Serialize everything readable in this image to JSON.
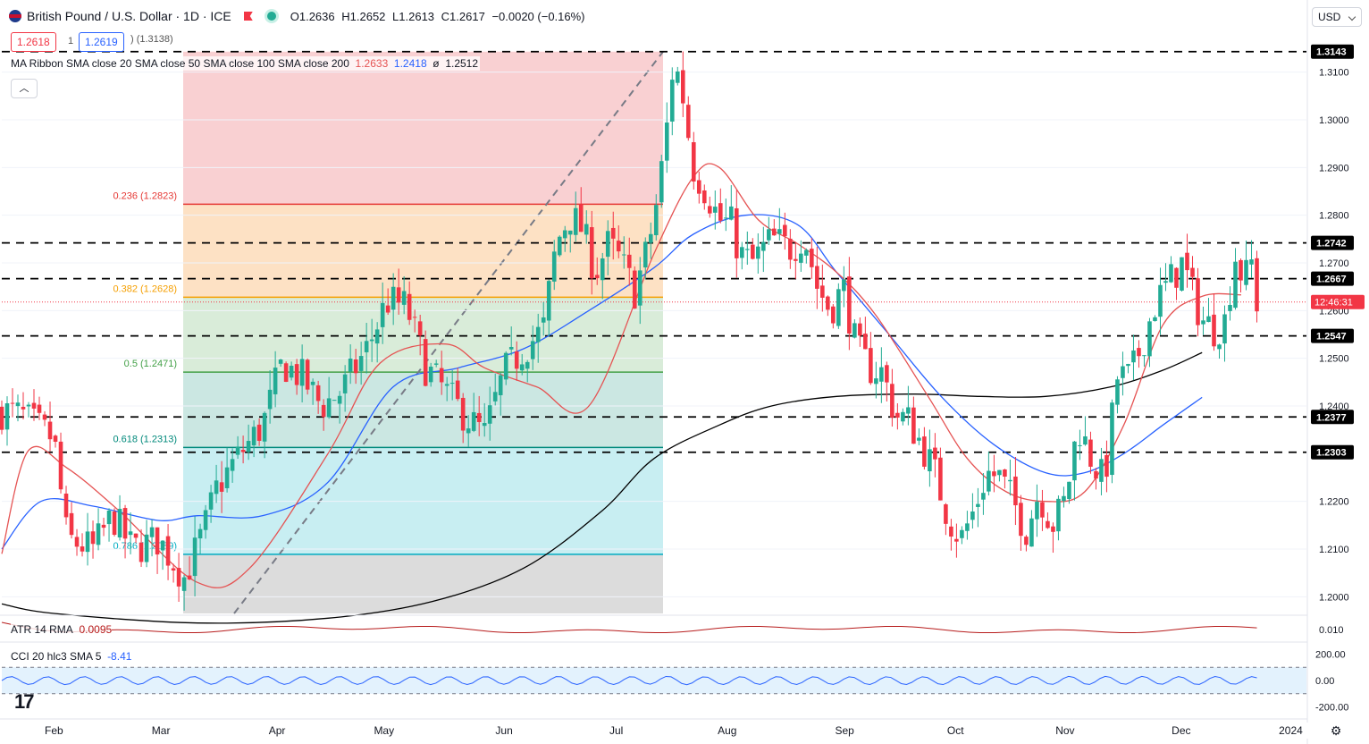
{
  "header": {
    "symbol": "British Pound / U.S. Dollar · 1D · ICE",
    "open": "O1.2636",
    "high": "H1.2652",
    "low": "L1.2613",
    "close": "C1.2617",
    "change": "−0.0020 (−0.16%)",
    "sell_price": "1.2618",
    "spread": "1",
    "buy_price": "1.2619",
    "hidden_value": ") (1.3138)",
    "currency": "USD"
  },
  "ribbon": {
    "label": "MA Ribbon SMA close 20 SMA close 50 SMA close 100 SMA close 200",
    "v20": "1.2633",
    "v50": "1.2418",
    "vsep": "ø",
    "v100": "1.2512"
  },
  "atr": {
    "label": "ATR 14 RMA",
    "value": "0.0095"
  },
  "cci": {
    "label": "CCI 20 hlc3 SMA 5",
    "value": "-8.41"
  },
  "colors": {
    "up": "#22ab94",
    "down": "#f23645",
    "ma20": "#e55353",
    "ma50": "#2962ff",
    "ma200": "#000000",
    "fib_0": "#f9d0d2",
    "fib_236": "#fde1c4",
    "fib_382": "#d9ecd9",
    "fib_5": "#cbe7e2",
    "fib_618": "#c8eef2",
    "fib_786": "#dcdcdc"
  },
  "chart_data": {
    "type": "candlestick",
    "instrument": "GBP/USD",
    "timeframe": "1D",
    "x_ticks": [
      "Feb",
      "Mar",
      "Apr",
      "May",
      "Jun",
      "Jul",
      "Aug",
      "Sep",
      "Oct",
      "Nov",
      "Dec",
      "2024"
    ],
    "y_ticks": [
      "1.3100",
      "1.3000",
      "1.2900",
      "1.2800",
      "1.2700",
      "1.2600",
      "1.2500",
      "1.2400",
      "1.2200",
      "1.2100",
      "1.2000"
    ],
    "ylim": [
      1.1965,
      1.3195
    ],
    "horizontal_levels": [
      1.3143,
      1.2742,
      1.2667,
      1.2547,
      1.2377,
      1.2303
    ],
    "level_labels": [
      "1.3143",
      "1.2742",
      "1.2667",
      "1.2547",
      "1.2377",
      "1.2303"
    ],
    "current_price": 1.2618,
    "countdown": "12:46:31",
    "fibonacci": {
      "levels": [
        {
          "label": "0.236 (1.2823)",
          "price": 1.2823,
          "ratio": 0.236
        },
        {
          "label": "0.382 (1.2628)",
          "price": 1.2628,
          "ratio": 0.382
        },
        {
          "label": "0.5 (1.2471)",
          "price": 1.2471,
          "ratio": 0.5
        },
        {
          "label": "0.618 (1.2313)",
          "price": 1.2313,
          "ratio": 0.618
        },
        {
          "label": "0.786 (1.2089)",
          "price": 1.2089,
          "ratio": 0.786
        }
      ],
      "high": 1.3143
    },
    "ma_keypoints": {
      "ma20": [
        [
          0.0,
          1.209
        ],
        [
          0.02,
          1.2305
        ],
        [
          0.05,
          1.227
        ],
        [
          0.09,
          1.218
        ],
        [
          0.15,
          1.203
        ],
        [
          0.19,
          1.206
        ],
        [
          0.25,
          1.23
        ],
        [
          0.29,
          1.249
        ],
        [
          0.34,
          1.253
        ],
        [
          0.37,
          1.248
        ],
        [
          0.41,
          1.244
        ],
        [
          0.45,
          1.24
        ],
        [
          0.5,
          1.272
        ],
        [
          0.53,
          1.288
        ],
        [
          0.55,
          1.29
        ],
        [
          0.58,
          1.279
        ],
        [
          0.61,
          1.274
        ],
        [
          0.64,
          1.268
        ],
        [
          0.67,
          1.259
        ],
        [
          0.71,
          1.242
        ],
        [
          0.74,
          1.229
        ],
        [
          0.77,
          1.222
        ],
        [
          0.8,
          1.22
        ],
        [
          0.83,
          1.222
        ],
        [
          0.86,
          1.236
        ],
        [
          0.89,
          1.257
        ],
        [
          0.92,
          1.263
        ],
        [
          0.95,
          1.2633
        ]
      ],
      "ma50": [
        [
          0.0,
          1.21
        ],
        [
          0.03,
          1.22
        ],
        [
          0.07,
          1.219
        ],
        [
          0.12,
          1.216
        ],
        [
          0.15,
          1.217
        ],
        [
          0.2,
          1.217
        ],
        [
          0.25,
          1.224
        ],
        [
          0.3,
          1.244
        ],
        [
          0.35,
          1.248
        ],
        [
          0.4,
          1.252
        ],
        [
          0.45,
          1.26
        ],
        [
          0.5,
          1.269
        ],
        [
          0.53,
          1.276
        ],
        [
          0.57,
          1.28
        ],
        [
          0.61,
          1.278
        ],
        [
          0.64,
          1.268
        ],
        [
          0.68,
          1.255
        ],
        [
          0.72,
          1.242
        ],
        [
          0.76,
          1.232
        ],
        [
          0.8,
          1.226
        ],
        [
          0.83,
          1.226
        ],
        [
          0.86,
          1.23
        ],
        [
          0.89,
          1.236
        ],
        [
          0.92,
          1.2418
        ]
      ],
      "ma200": [
        [
          0.0,
          1.1985
        ],
        [
          0.04,
          1.1965
        ],
        [
          0.15,
          1.1945
        ],
        [
          0.25,
          1.1955
        ],
        [
          0.33,
          1.199
        ],
        [
          0.4,
          1.206
        ],
        [
          0.46,
          1.218
        ],
        [
          0.5,
          1.229
        ],
        [
          0.55,
          1.236
        ],
        [
          0.59,
          1.24
        ],
        [
          0.64,
          1.242
        ],
        [
          0.7,
          1.2425
        ],
        [
          0.75,
          1.242
        ],
        [
          0.8,
          1.242
        ],
        [
          0.85,
          1.244
        ],
        [
          0.89,
          1.2475
        ],
        [
          0.92,
          1.2512
        ]
      ]
    },
    "atr_panel": {
      "yticks": [
        "0.010"
      ],
      "value": 0.0095
    },
    "cci_panel": {
      "yticks": [
        "200.00",
        "0.00",
        "-200.00"
      ],
      "bands": [
        100,
        -100
      ],
      "value": -8.41
    }
  }
}
